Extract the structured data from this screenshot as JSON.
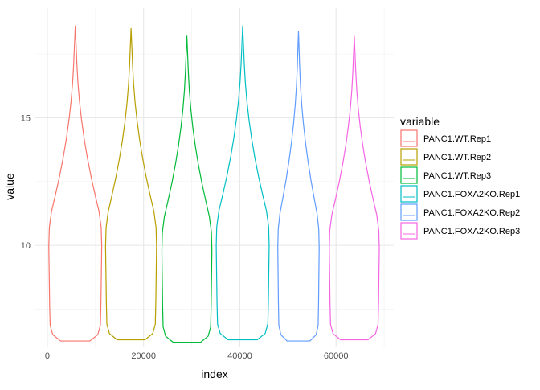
{
  "chart_data": {
    "type": "violin",
    "title": "",
    "xlabel": "index",
    "ylabel": "value",
    "xlim": [
      -2500,
      72000
    ],
    "ylim": [
      6.0,
      19.3
    ],
    "x_ticks": [
      0,
      20000,
      40000,
      60000
    ],
    "x_tick_labels": [
      "0",
      "20000",
      "40000",
      "60000"
    ],
    "y_ticks": [
      10,
      15
    ],
    "y_tick_labels": [
      "10",
      "15"
    ],
    "grid": true,
    "legend": {
      "title": "variable",
      "position": "right"
    },
    "series": [
      {
        "name": "PANC1.WT.Rep1",
        "color": "#F8766D",
        "center": 5800,
        "min": 6.25,
        "max": 18.6,
        "max_half_width": 5500
      },
      {
        "name": "PANC1.WT.Rep2",
        "color": "#B79F00",
        "center": 17400,
        "min": 6.3,
        "max": 18.5,
        "max_half_width": 5300
      },
      {
        "name": "PANC1.WT.Rep3",
        "color": "#00BA38",
        "center": 29000,
        "min": 6.2,
        "max": 18.2,
        "max_half_width": 5200
      },
      {
        "name": "PANC1.FOXA2KO.Rep1",
        "color": "#00BFC4",
        "center": 40600,
        "min": 6.3,
        "max": 18.6,
        "max_half_width": 5500
      },
      {
        "name": "PANC1.FOXA2KO.Rep2",
        "color": "#619CFF",
        "center": 52200,
        "min": 6.25,
        "max": 18.4,
        "max_half_width": 4300
      },
      {
        "name": "PANC1.FOXA2KO.Rep3",
        "color": "#F564E3",
        "center": 63800,
        "min": 6.3,
        "max": 18.2,
        "max_half_width": 5200
      }
    ]
  }
}
